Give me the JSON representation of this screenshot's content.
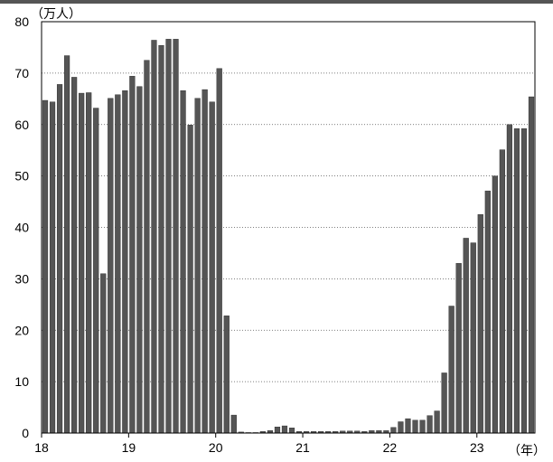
{
  "chart_data": {
    "type": "bar",
    "y_unit_label": "（万人）",
    "x_unit_label": "（年）",
    "ylim": [
      0,
      80
    ],
    "y_ticks": [
      0,
      10,
      20,
      30,
      40,
      50,
      60,
      70,
      80
    ],
    "grid": "horizontal dotted",
    "bar_color": "#555555",
    "year_ticks": [
      {
        "label": "18",
        "start_index": 0
      },
      {
        "label": "19",
        "start_index": 12
      },
      {
        "label": "20",
        "start_index": 24
      },
      {
        "label": "21",
        "start_index": 36
      },
      {
        "label": "22",
        "start_index": 48
      },
      {
        "label": "23",
        "start_index": 60
      }
    ],
    "values": [
      64.7,
      64.4,
      67.8,
      73.4,
      69.2,
      66.1,
      66.2,
      63.2,
      31.0,
      65.1,
      65.8,
      66.6,
      69.4,
      67.4,
      72.5,
      76.4,
      75.4,
      76.6,
      76.6,
      66.6,
      59.9,
      65.1,
      66.8,
      64.4,
      70.9,
      22.8,
      3.5,
      0.2,
      0.1,
      0.1,
      0.3,
      0.5,
      1.2,
      1.4,
      1.0,
      0.3,
      0.3,
      0.3,
      0.3,
      0.3,
      0.3,
      0.4,
      0.4,
      0.4,
      0.3,
      0.5,
      0.5,
      0.5,
      1.1,
      2.2,
      2.8,
      2.5,
      2.5,
      3.4,
      4.3,
      11.7,
      24.7,
      33.0,
      37.9,
      37.0,
      42.5,
      47.1,
      50.0,
      55.1,
      60.0,
      59.2,
      59.2,
      65.4
    ]
  }
}
